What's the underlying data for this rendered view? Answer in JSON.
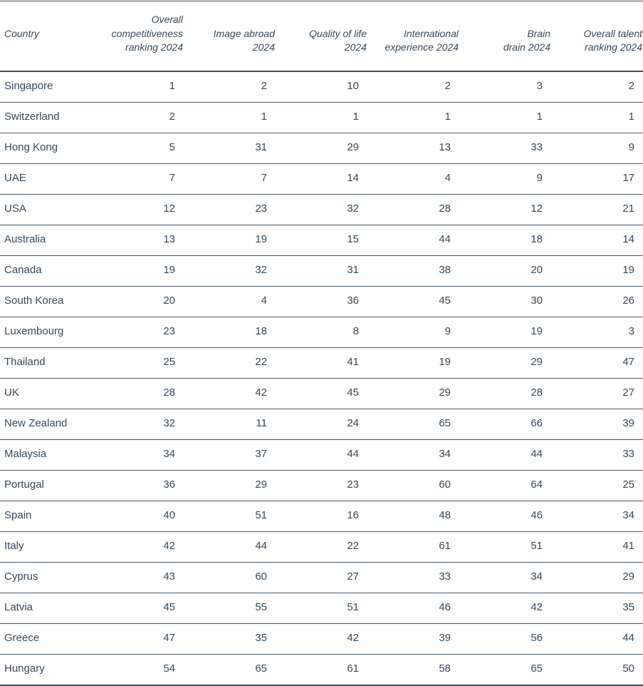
{
  "colors": {
    "text": "#37485a",
    "thin_rule": "#4a5a69",
    "thick_rule": "#3d4e5e",
    "background": "#ffffff"
  },
  "chart_data": {
    "type": "table",
    "title": "",
    "legend": "none",
    "grid": "horizontal-rules",
    "columns": [
      "Country",
      "Overall\ncompetitiveness\nranking 2024",
      "Image abroad\n2024",
      "Quality of life\n2024",
      "International\nexperience 2024",
      "Brain\ndrain 2024",
      "Overall talent\nranking 2024"
    ],
    "rows": [
      [
        "Singapore",
        1,
        2,
        10,
        2,
        3,
        2
      ],
      [
        "Switzerland",
        2,
        1,
        1,
        1,
        1,
        1
      ],
      [
        "Hong Kong",
        5,
        31,
        29,
        13,
        33,
        9
      ],
      [
        "UAE",
        7,
        7,
        14,
        4,
        9,
        17
      ],
      [
        "USA",
        12,
        23,
        32,
        28,
        12,
        21
      ],
      [
        "Australia",
        13,
        19,
        15,
        44,
        18,
        14
      ],
      [
        "Canada",
        19,
        32,
        31,
        38,
        20,
        19
      ],
      [
        "South Korea",
        20,
        4,
        36,
        45,
        30,
        26
      ],
      [
        "Luxembourg",
        23,
        18,
        8,
        9,
        19,
        3
      ],
      [
        "Thailand",
        25,
        22,
        41,
        19,
        29,
        47
      ],
      [
        "UK",
        28,
        42,
        45,
        29,
        28,
        27
      ],
      [
        "New Zealand",
        32,
        11,
        24,
        65,
        66,
        39
      ],
      [
        "Malaysia",
        34,
        37,
        44,
        34,
        44,
        33
      ],
      [
        "Portugal",
        36,
        29,
        23,
        60,
        64,
        25
      ],
      [
        "Spain",
        40,
        51,
        16,
        48,
        46,
        34
      ],
      [
        "Italy",
        42,
        44,
        22,
        61,
        51,
        41
      ],
      [
        "Cyprus",
        43,
        60,
        27,
        33,
        34,
        29
      ],
      [
        "Latvia",
        45,
        55,
        51,
        46,
        42,
        35
      ],
      [
        "Greece",
        47,
        35,
        42,
        39,
        56,
        44
      ],
      [
        "Hungary",
        54,
        65,
        61,
        58,
        65,
        50
      ]
    ]
  }
}
